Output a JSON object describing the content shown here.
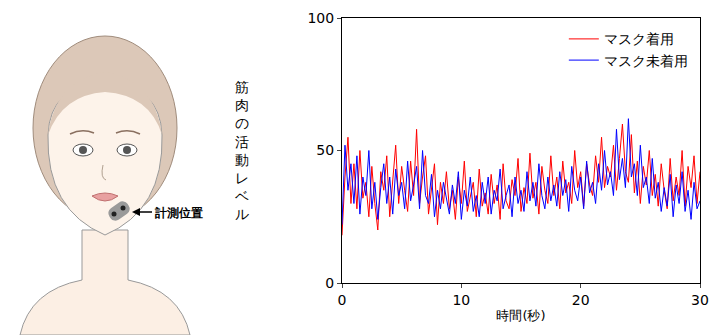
{
  "chart_data": {
    "type": "line",
    "xlabel": "時間(秒)",
    "ylabel": "筋肉の活動レベル",
    "xlim": [
      0,
      30
    ],
    "xticks": [
      0,
      10,
      20,
      30
    ],
    "ylim": [
      0,
      100
    ],
    "yticks": [
      0,
      50,
      100
    ],
    "grid": false,
    "legend": "upper right",
    "x": [
      0,
      0.25,
      0.5,
      0.75,
      1,
      1.25,
      1.5,
      1.75,
      2,
      2.25,
      2.5,
      2.75,
      3,
      3.25,
      3.5,
      3.75,
      4,
      4.25,
      4.5,
      4.75,
      5,
      5.25,
      5.5,
      5.75,
      6,
      6.25,
      6.5,
      6.75,
      7,
      7.25,
      7.5,
      7.75,
      8,
      8.25,
      8.5,
      8.75,
      9,
      9.25,
      9.5,
      9.75,
      10,
      10.25,
      10.5,
      10.75,
      11,
      11.25,
      11.5,
      11.75,
      12,
      12.25,
      12.5,
      12.75,
      13,
      13.25,
      13.5,
      13.75,
      14,
      14.25,
      14.5,
      14.75,
      15,
      15.25,
      15.5,
      15.75,
      16,
      16.25,
      16.5,
      16.75,
      17,
      17.25,
      17.5,
      17.75,
      18,
      18.25,
      18.5,
      18.75,
      19,
      19.25,
      19.5,
      19.75,
      20,
      20.25,
      20.5,
      20.75,
      21,
      21.25,
      21.5,
      21.75,
      22,
      22.25,
      22.5,
      22.75,
      23,
      23.25,
      23.5,
      23.75,
      24,
      24.25,
      24.5,
      24.75,
      25,
      25.25,
      25.5,
      25.75,
      26,
      26.25,
      26.5,
      26.75,
      27,
      27.25,
      27.5,
      27.75,
      28,
      28.25,
      28.5,
      28.75,
      29,
      29.25,
      29.5,
      29.75,
      30
    ],
    "series": [
      {
        "name": "マスク着用",
        "color": "#ff0000",
        "values": [
          18,
          40,
          55,
          30,
          45,
          28,
          50,
          32,
          38,
          25,
          44,
          30,
          20,
          42,
          35,
          48,
          25,
          38,
          52,
          30,
          44,
          35,
          27,
          46,
          33,
          58,
          30,
          40,
          48,
          26,
          36,
          45,
          22,
          38,
          30,
          42,
          28,
          35,
          24,
          40,
          30,
          46,
          27,
          33,
          38,
          25,
          43,
          29,
          34,
          26,
          41,
          30,
          37,
          24,
          45,
          31,
          28,
          39,
          33,
          47,
          27,
          36,
          30,
          49,
          32,
          38,
          26,
          44,
          35,
          30,
          48,
          33,
          40,
          28,
          46,
          34,
          38,
          30,
          50,
          36,
          42,
          29,
          45,
          37,
          33,
          48,
          38,
          55,
          36,
          44,
          40,
          52,
          35,
          47,
          60,
          42,
          38,
          56,
          34,
          46,
          30,
          44,
          37,
          50,
          33,
          41,
          29,
          45,
          35,
          28,
          47,
          31,
          40,
          33,
          50,
          29,
          44,
          36,
          48,
          30,
          42
        ]
      },
      {
        "name": "マスク未着用",
        "color": "#0000ff",
        "values": [
          22,
          52,
          35,
          45,
          30,
          48,
          26,
          40,
          33,
          50,
          28,
          38,
          24,
          36,
          45,
          30,
          40,
          26,
          43,
          33,
          38,
          28,
          46,
          31,
          37,
          44,
          28,
          50,
          33,
          30,
          41,
          25,
          35,
          28,
          38,
          32,
          26,
          37,
          30,
          42,
          24,
          35,
          29,
          40,
          27,
          33,
          25,
          38,
          30,
          40,
          26,
          35,
          31,
          43,
          28,
          33,
          37,
          25,
          40,
          30,
          35,
          27,
          42,
          31,
          38,
          29,
          45,
          33,
          28,
          40,
          31,
          37,
          29,
          42,
          33,
          39,
          27,
          44,
          35,
          31,
          40,
          28,
          46,
          34,
          38,
          30,
          45,
          35,
          50,
          37,
          42,
          33,
          58,
          39,
          47,
          36,
          62,
          40,
          45,
          33,
          52,
          36,
          40,
          30,
          47,
          32,
          38,
          27,
          36,
          29,
          41,
          25,
          37,
          30,
          42,
          27,
          35,
          24,
          38,
          28,
          31
        ]
      }
    ]
  },
  "diagram": {
    "label": "計測位置"
  }
}
